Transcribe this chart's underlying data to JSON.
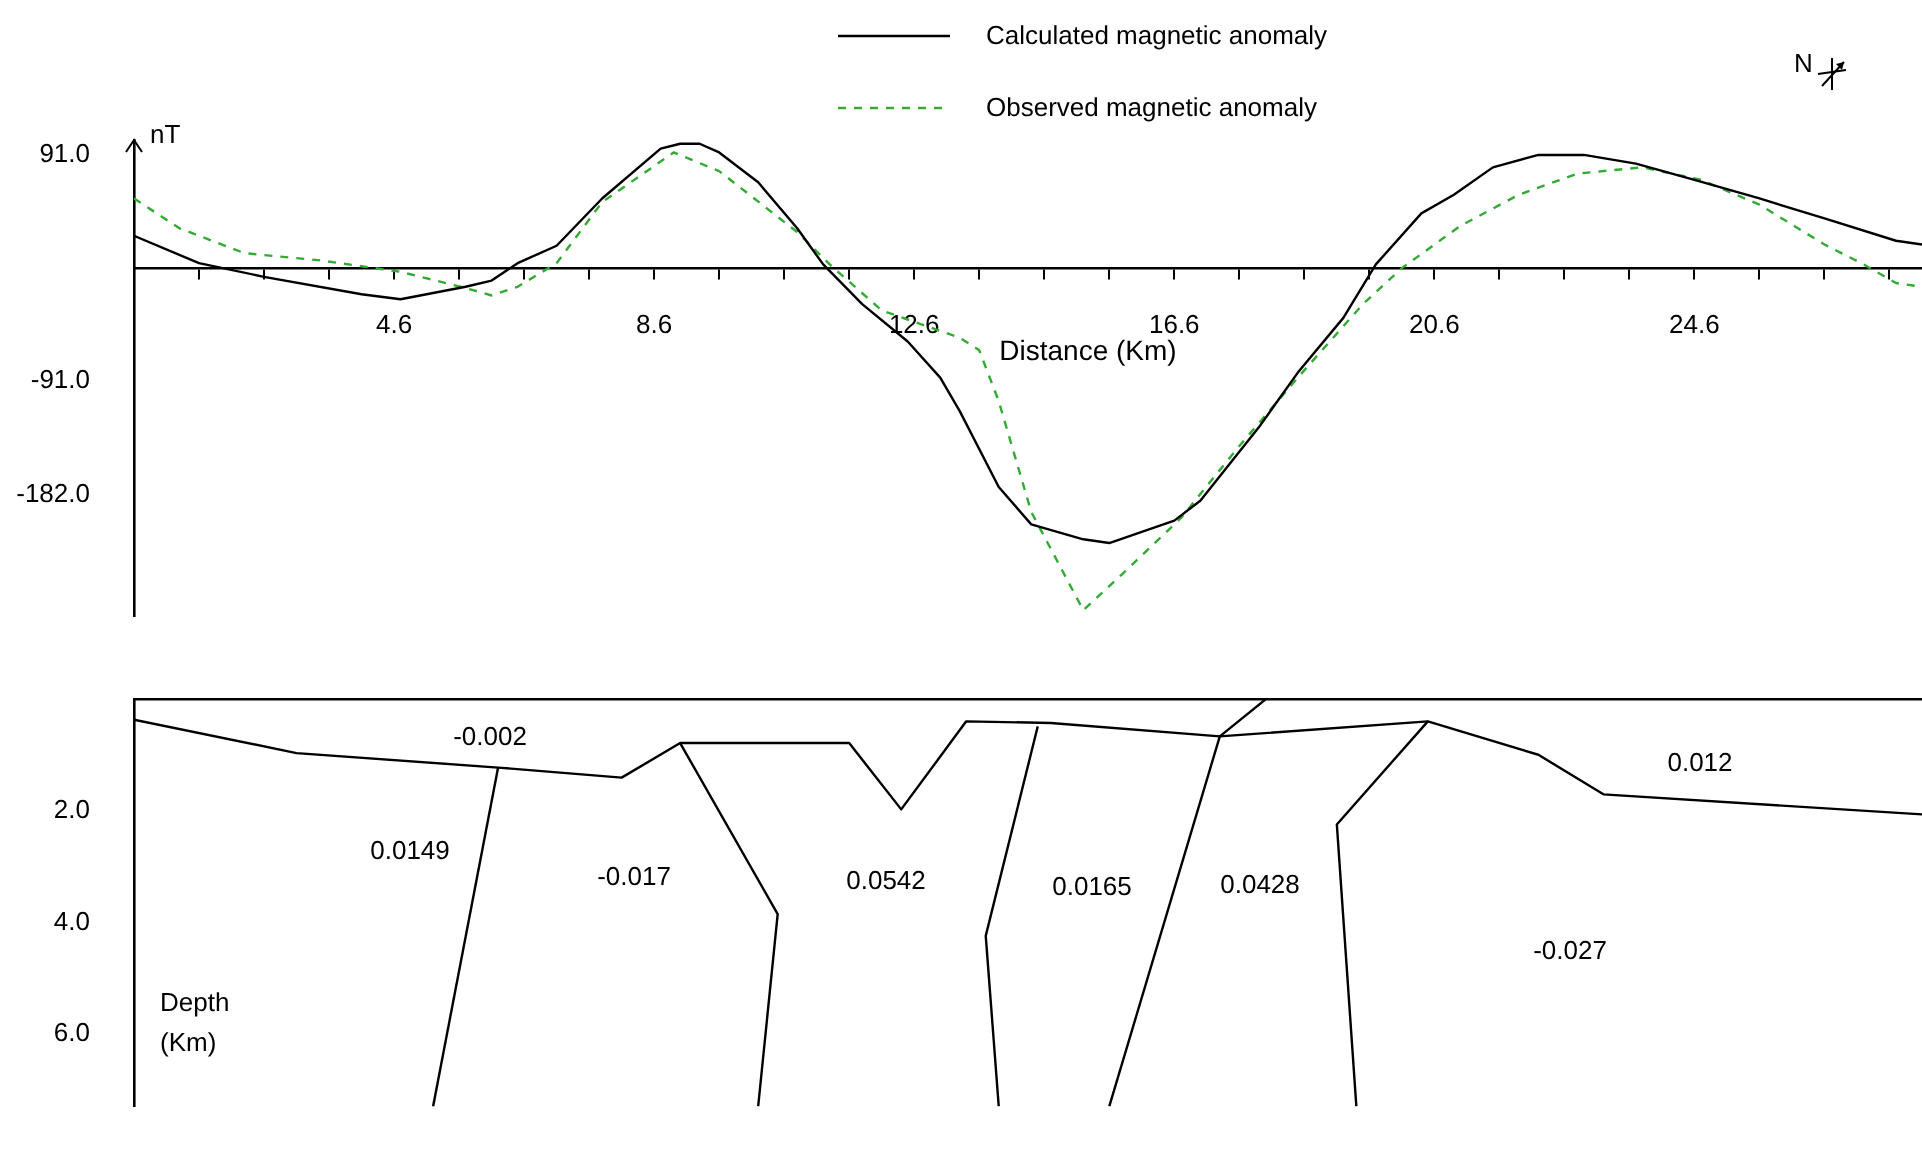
{
  "chart_data": [
    {
      "type": "line",
      "xlabel": "Distance (Km)",
      "ylabel": "nT",
      "legend": "top",
      "marker": "none",
      "annotations": [
        "N"
      ],
      "xlim": [
        0.6,
        28.1
      ],
      "ylim": [
        -280,
        103
      ],
      "xticks": [
        {
          "value": 0.6,
          "label": null
        },
        {
          "value": 1.6,
          "label": null
        },
        {
          "value": 2.6,
          "label": null
        },
        {
          "value": 3.6,
          "label": null
        },
        4.6,
        {
          "value": 5.6,
          "label": null
        },
        {
          "value": 6.6,
          "label": null
        },
        {
          "value": 7.6,
          "label": null
        },
        8.6,
        {
          "value": 9.6,
          "label": null
        },
        {
          "value": 10.6,
          "label": null
        },
        {
          "value": 11.6,
          "label": null
        },
        12.6,
        {
          "value": 13.6,
          "label": null
        },
        {
          "value": 14.6,
          "label": null
        },
        {
          "value": 15.6,
          "label": null
        },
        16.6,
        {
          "value": 17.6,
          "label": null
        },
        {
          "value": 18.6,
          "label": null
        },
        {
          "value": 19.6,
          "label": null
        },
        20.6,
        {
          "value": 21.6,
          "label": null
        },
        {
          "value": 22.6,
          "label": null
        },
        {
          "value": 23.6,
          "label": null
        },
        24.6,
        {
          "value": 25.6,
          "label": null
        },
        {
          "value": 26.6,
          "label": null
        },
        {
          "value": 27.6,
          "label": null
        }
      ],
      "yticks": [
        {
          "value": 91,
          "label": "91.0"
        },
        {
          "value": -91,
          "label": "-91.0"
        },
        {
          "value": -182,
          "label": "-182.0"
        }
      ],
      "series": [
        {
          "name": "Calculated magnetic anomaly",
          "color": "#000000",
          "line_style": "solid",
          "x": [
            0.6,
            1.6,
            2.6,
            4.1,
            4.7,
            5.7,
            6.1,
            6.5,
            7.1,
            7.8,
            8.7,
            9.0,
            9.3,
            9.6,
            10.2,
            10.8,
            11.2,
            11.8,
            12.5,
            13.0,
            13.3,
            13.9,
            14.4,
            15.2,
            15.6,
            16.6,
            17.0,
            17.9,
            18.5,
            19.2,
            19.7,
            20.4,
            20.9,
            21.5,
            22.2,
            22.9,
            23.7,
            24.6,
            25.6,
            26.6,
            27.7,
            28.1
          ],
          "values": [
            26,
            4,
            -7,
            -21,
            -25,
            -15,
            -10,
            4,
            18,
            56,
            96,
            100,
            100,
            93,
            69,
            32,
            3,
            -29,
            -59,
            -88,
            -115,
            -176,
            -206,
            -218,
            -221,
            -203,
            -187,
            -128,
            -84,
            -40,
            3,
            44,
            59,
            81,
            91,
            91,
            84,
            71,
            56,
            40,
            22,
            19
          ]
        },
        {
          "name": "Observed magnetic anomaly",
          "color": "#33aa33",
          "line_style": "dashed",
          "x": [
            0.6,
            1.3,
            2.3,
            3.5,
            4.7,
            5.7,
            6.1,
            6.5,
            7.1,
            7.8,
            8.9,
            9.6,
            10.8,
            11.3,
            12.1,
            13.3,
            13.6,
            13.9,
            14.4,
            15.2,
            15.8,
            16.7,
            17.6,
            18.5,
            19.5,
            20.1,
            21.0,
            21.9,
            22.8,
            23.8,
            24.7,
            25.6,
            26.6,
            27.2,
            27.7,
            28.1
          ],
          "values": [
            56,
            32,
            12,
            6,
            -3,
            -16,
            -22,
            -15,
            4,
            53,
            93,
            78,
            29,
            3,
            -34,
            -56,
            -66,
            -107,
            -196,
            -275,
            -246,
            -201,
            -143,
            -88,
            -29,
            0,
            34,
            59,
            76,
            81,
            71,
            51,
            19,
            3,
            -12,
            -15
          ]
        }
      ]
    },
    {
      "type": "line",
      "ylabel": "Depth (Km)",
      "marker": "none",
      "tick_labels": "y",
      "xlim": [
        0.6,
        28.1
      ],
      "ylim": [
        7.3,
        0
      ],
      "yticks": [
        {
          "value": 2,
          "label": "2.0"
        },
        {
          "value": 4,
          "label": "4.0"
        },
        {
          "value": 6,
          "label": "6.0"
        }
      ],
      "annotations": [
        "-0.002",
        "0.0149",
        "-0.017",
        "0.0542",
        "0.0165",
        "0.0428",
        "0.012",
        "-0.027"
      ],
      "series": [
        {
          "color": "#000000",
          "x": [
            0.6,
            3.1,
            6.2,
            8.1,
            9.0,
            11.6,
            12.4,
            13.4,
            14.7,
            17.3,
            20.5,
            22.2,
            23.2,
            28.1
          ],
          "values": [
            0.36,
            0.96,
            1.22,
            1.4,
            0.78,
            0.78,
            1.97,
            0.39,
            0.42,
            0.66,
            0.39,
            0.99,
            1.7,
            2.06
          ]
        },
        {
          "color": "#000000",
          "x": [
            6.2,
            5.2
          ],
          "values": [
            1.22,
            7.3
          ]
        },
        {
          "color": "#000000",
          "x": [
            9.0,
            10.5,
            10.2
          ],
          "values": [
            0.78,
            3.85,
            7.3
          ]
        },
        {
          "color": "#000000",
          "x": [
            14.5,
            13.7,
            13.9
          ],
          "values": [
            0.48,
            4.24,
            7.3
          ]
        },
        {
          "color": "#000000",
          "x": [
            18.0,
            17.3,
            15.6
          ],
          "values": [
            0.0,
            0.66,
            7.3
          ]
        },
        {
          "color": "#000000",
          "x": [
            20.5,
            19.1,
            19.4
          ],
          "values": [
            0.39,
            2.24,
            7.3
          ]
        }
      ]
    }
  ]
}
